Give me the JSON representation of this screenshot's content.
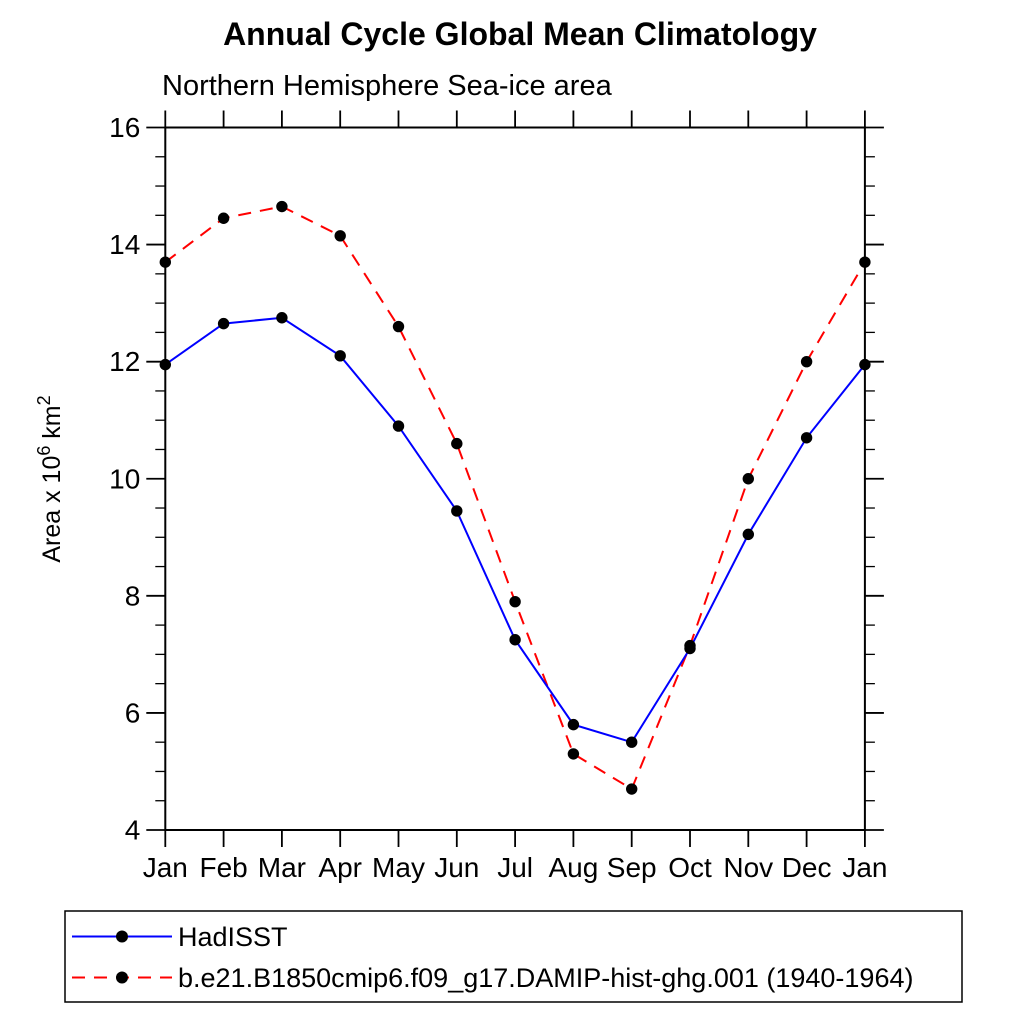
{
  "title": "Annual Cycle Global Mean Climatology",
  "subtitle": "Northern Hemisphere Sea-ice area",
  "colors": {
    "background": "#ffffff",
    "axis": "#000000",
    "marker": "#000000",
    "hadisst_line": "#0000ff",
    "model_line": "#ff0000"
  },
  "chart_data": {
    "type": "line",
    "title": "Annual Cycle Global Mean Climatology",
    "subtitle": "Northern Hemisphere Sea-ice area",
    "categories": [
      "Jan",
      "Feb",
      "Mar",
      "Apr",
      "May",
      "Jun",
      "Jul",
      "Aug",
      "Sep",
      "Oct",
      "Nov",
      "Dec",
      "Jan"
    ],
    "series": [
      {
        "name": "HadISST",
        "color": "#0000ff",
        "line_style": "solid",
        "marker": "filled-circle",
        "marker_color": "#000000",
        "values": [
          11.95,
          12.65,
          12.75,
          12.1,
          10.9,
          9.45,
          7.25,
          5.8,
          5.5,
          7.1,
          9.05,
          10.7,
          11.95
        ]
      },
      {
        "name": "b.e21.B1850cmip6.f09_g17.DAMIP-hist-ghg.001 (1940-1964)",
        "color": "#ff0000",
        "line_style": "dashed",
        "marker": "filled-circle",
        "marker_color": "#000000",
        "values": [
          13.7,
          14.45,
          14.65,
          14.15,
          12.6,
          10.6,
          7.9,
          5.3,
          4.7,
          7.15,
          10.0,
          12.0,
          13.7
        ]
      }
    ],
    "xlabel": "",
    "ylabel": "Area x 10^6 km^2",
    "ylabel_parts": [
      {
        "t": "Area x 10",
        "sup": false
      },
      {
        "t": "6",
        "sup": true
      },
      {
        "t": " km",
        "sup": false
      },
      {
        "t": "2",
        "sup": true
      }
    ],
    "ylim": [
      4,
      16
    ],
    "ytick_major": [
      4,
      6,
      8,
      10,
      12,
      14,
      16
    ],
    "ytick_minor_step": 0.5,
    "grid": false,
    "frame": "all-four-sides",
    "legend_position": "bottom-left-box"
  },
  "legend": {
    "items": [
      {
        "label": "HadISST"
      },
      {
        "label": "b.e21.B1850cmip6.f09_g17.DAMIP-hist-ghg.001 (1940-1964)"
      }
    ]
  }
}
